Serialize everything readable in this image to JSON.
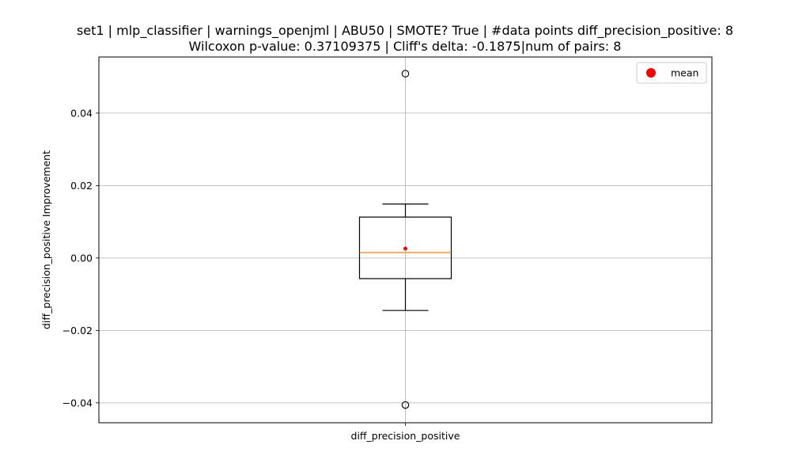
{
  "chart_data": {
    "type": "box",
    "title_line1": "set1 | mlp_classifier | warnings_openjml | ABU50 | SMOTE? True | #data points diff_precision_positive: 8",
    "title_line2": "Wilcoxon p-value: 0.37109375 | Cliff's delta: -0.1875|num of pairs: 8",
    "xlabel": "",
    "ylabel": "diff_precision_positive Improvement",
    "categories": [
      "diff_precision_positive"
    ],
    "ylim": [
      -0.0455,
      0.0555
    ],
    "yticks": [
      -0.04,
      -0.02,
      0.0,
      0.02,
      0.04
    ],
    "ytick_labels": [
      "−0.04",
      "−0.02",
      "0.00",
      "0.02",
      "0.04"
    ],
    "grid": true,
    "legend": {
      "position": "top-right",
      "entries": [
        {
          "label": "mean",
          "color": "#ff0000"
        }
      ]
    },
    "box": {
      "whisker_low": -0.0145,
      "q1": -0.0057,
      "median": 0.0015,
      "q3": 0.0113,
      "whisker_high": 0.0149,
      "mean": 0.0026,
      "outliers": [
        0.0509,
        -0.0406
      ]
    },
    "colors": {
      "box": "#000000",
      "median": "#ff7f0e",
      "mean": "#ff0000",
      "grid": "#b0b0b0"
    }
  }
}
